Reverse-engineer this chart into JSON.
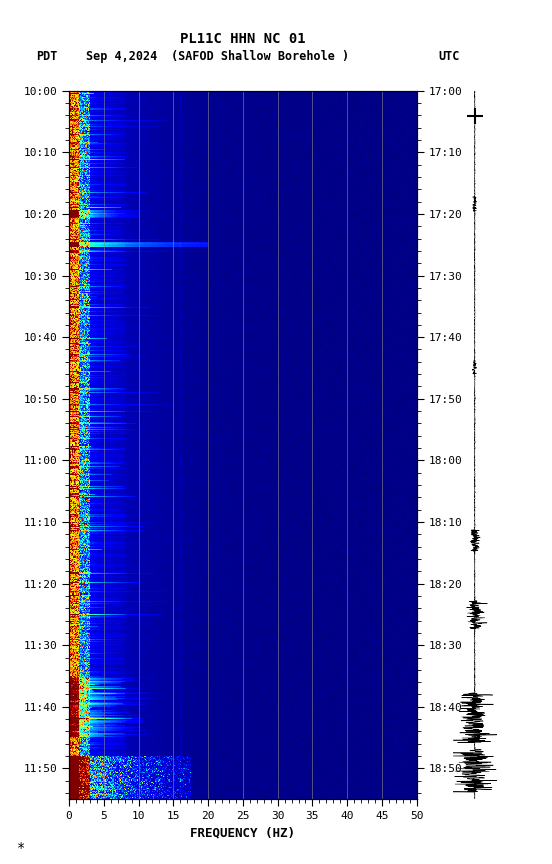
{
  "title_line1": "PL11C HHN NC 01",
  "left_label": "PDT",
  "right_label": "UTC",
  "date_label": "Sep 4,2024",
  "station_label": "(SAFOD Shallow Borehole )",
  "xlabel": "FREQUENCY (HZ)",
  "freq_min": 0,
  "freq_max": 50,
  "freq_ticks": [
    0,
    5,
    10,
    15,
    20,
    25,
    30,
    35,
    40,
    45,
    50
  ],
  "left_ticks": [
    "10:00",
    "10:10",
    "10:20",
    "10:30",
    "10:40",
    "10:50",
    "11:00",
    "11:10",
    "11:20",
    "11:30",
    "11:40",
    "11:50"
  ],
  "right_ticks": [
    "17:00",
    "17:10",
    "17:20",
    "17:30",
    "17:40",
    "17:50",
    "18:00",
    "18:10",
    "18:20",
    "18:30",
    "18:40",
    "18:50"
  ],
  "vlines_freq": [
    5,
    10,
    15,
    20,
    25,
    30,
    35,
    40,
    45
  ],
  "background_color": "#ffffff",
  "colormap": "jet",
  "fig_width": 5.52,
  "fig_height": 8.64,
  "dpi": 100,
  "seed": 42,
  "n_time": 690,
  "n_freq": 500,
  "total_minutes": 115
}
